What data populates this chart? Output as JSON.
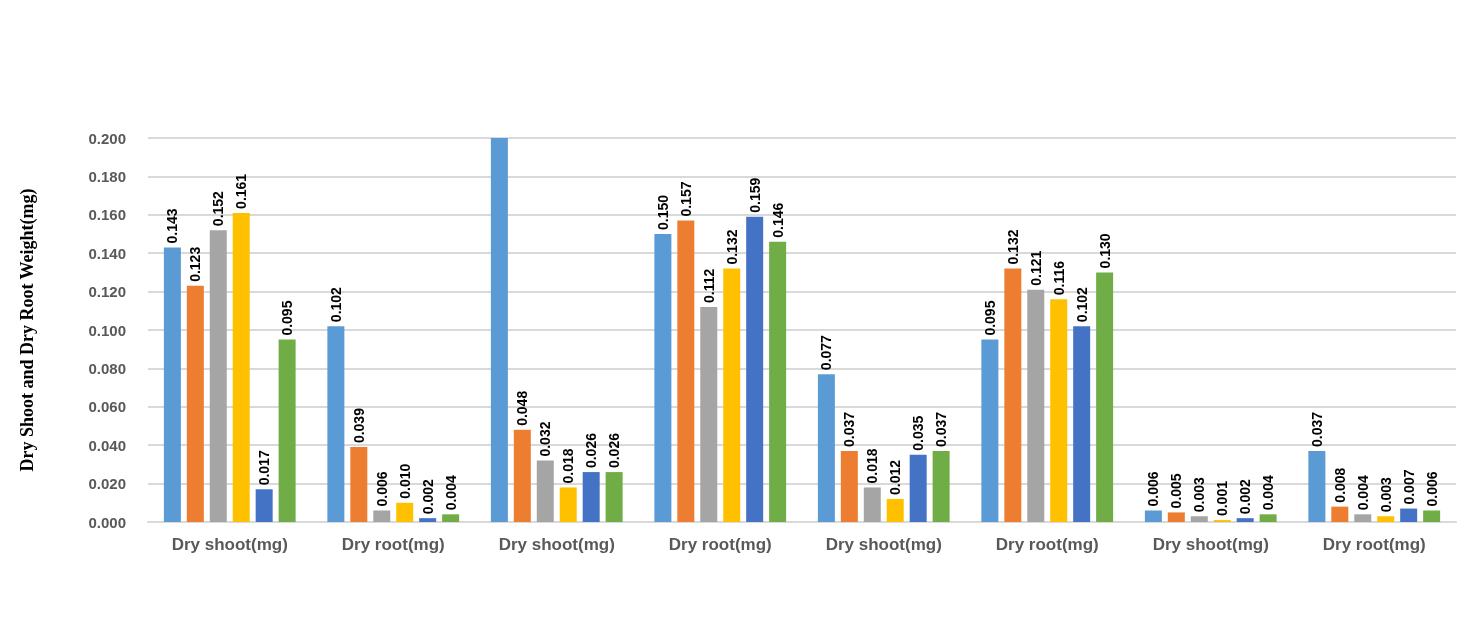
{
  "chart_data": {
    "type": "bar",
    "ylabel": "Dry Shoot and Dry Root Weight(mg)",
    "categories": [
      "Dry shoot(mg)",
      "Dry root(mg)",
      "Dry shoot(mg)",
      "Dry root(mg)",
      "Dry shoot(mg)",
      "Dry root(mg)",
      "Dry shoot(mg)",
      "Dry root(mg)"
    ],
    "series": [
      {
        "color": "#5b9bd5",
        "values": [
          0.143,
          0.102,
          0.2,
          0.15,
          0.077,
          0.095,
          0.006,
          0.037
        ],
        "value_labels": [
          "0.143",
          "0.102",
          null,
          "0.150",
          "0.077",
          "0.095",
          "0.006",
          "0.037"
        ]
      },
      {
        "color": "#ed7d31",
        "values": [
          0.123,
          0.039,
          0.048,
          0.157,
          0.037,
          0.132,
          0.005,
          0.008
        ],
        "value_labels": [
          "0.123",
          "0.039",
          "0.048",
          "0.157",
          "0.037",
          "0.132",
          "0.005",
          "0.008"
        ]
      },
      {
        "color": "#a5a5a5",
        "values": [
          0.152,
          0.006,
          0.032,
          0.112,
          0.018,
          0.121,
          0.003,
          0.004
        ],
        "value_labels": [
          "0.152",
          "0.006",
          "0.032",
          "0.112",
          "0.018",
          "0.121",
          "0.003",
          "0.004"
        ]
      },
      {
        "color": "#ffc000",
        "values": [
          0.161,
          0.01,
          0.018,
          0.132,
          0.012,
          0.116,
          0.001,
          0.003
        ],
        "value_labels": [
          "0.161",
          "0.010",
          "0.018",
          "0.132",
          "0.012",
          "0.116",
          "0.001",
          "0.003"
        ]
      },
      {
        "color": "#4472c4",
        "values": [
          0.017,
          0.002,
          0.026,
          0.159,
          0.035,
          0.102,
          0.002,
          0.007
        ],
        "value_labels": [
          "0.017",
          "0.002",
          "0.026",
          "0.159",
          "0.035",
          "0.102",
          "0.002",
          "0.007"
        ]
      },
      {
        "color": "#70ad47",
        "values": [
          0.095,
          0.004,
          0.026,
          0.146,
          0.037,
          0.13,
          0.004,
          0.006
        ],
        "value_labels": [
          "0.095",
          "0.004",
          "0.026",
          "0.146",
          "0.037",
          "0.130",
          "0.004",
          "0.006"
        ]
      }
    ],
    "ylim": [
      0,
      0.2
    ],
    "yticks": [
      {
        "value": 0,
        "label": "0.000"
      },
      {
        "value": 0.02,
        "label": "0.020"
      },
      {
        "value": 0.04,
        "label": "0.040"
      },
      {
        "value": 0.06,
        "label": "0.060"
      },
      {
        "value": 0.08,
        "label": "0.080"
      },
      {
        "value": 0.1,
        "label": "0.100"
      },
      {
        "value": 0.12,
        "label": "0.120"
      },
      {
        "value": 0.14,
        "label": "0.140"
      },
      {
        "value": 0.16,
        "label": "0.160"
      },
      {
        "value": 0.18,
        "label": "0.180"
      },
      {
        "value": 0.2,
        "label": "0.200"
      }
    ],
    "grid": "y"
  }
}
